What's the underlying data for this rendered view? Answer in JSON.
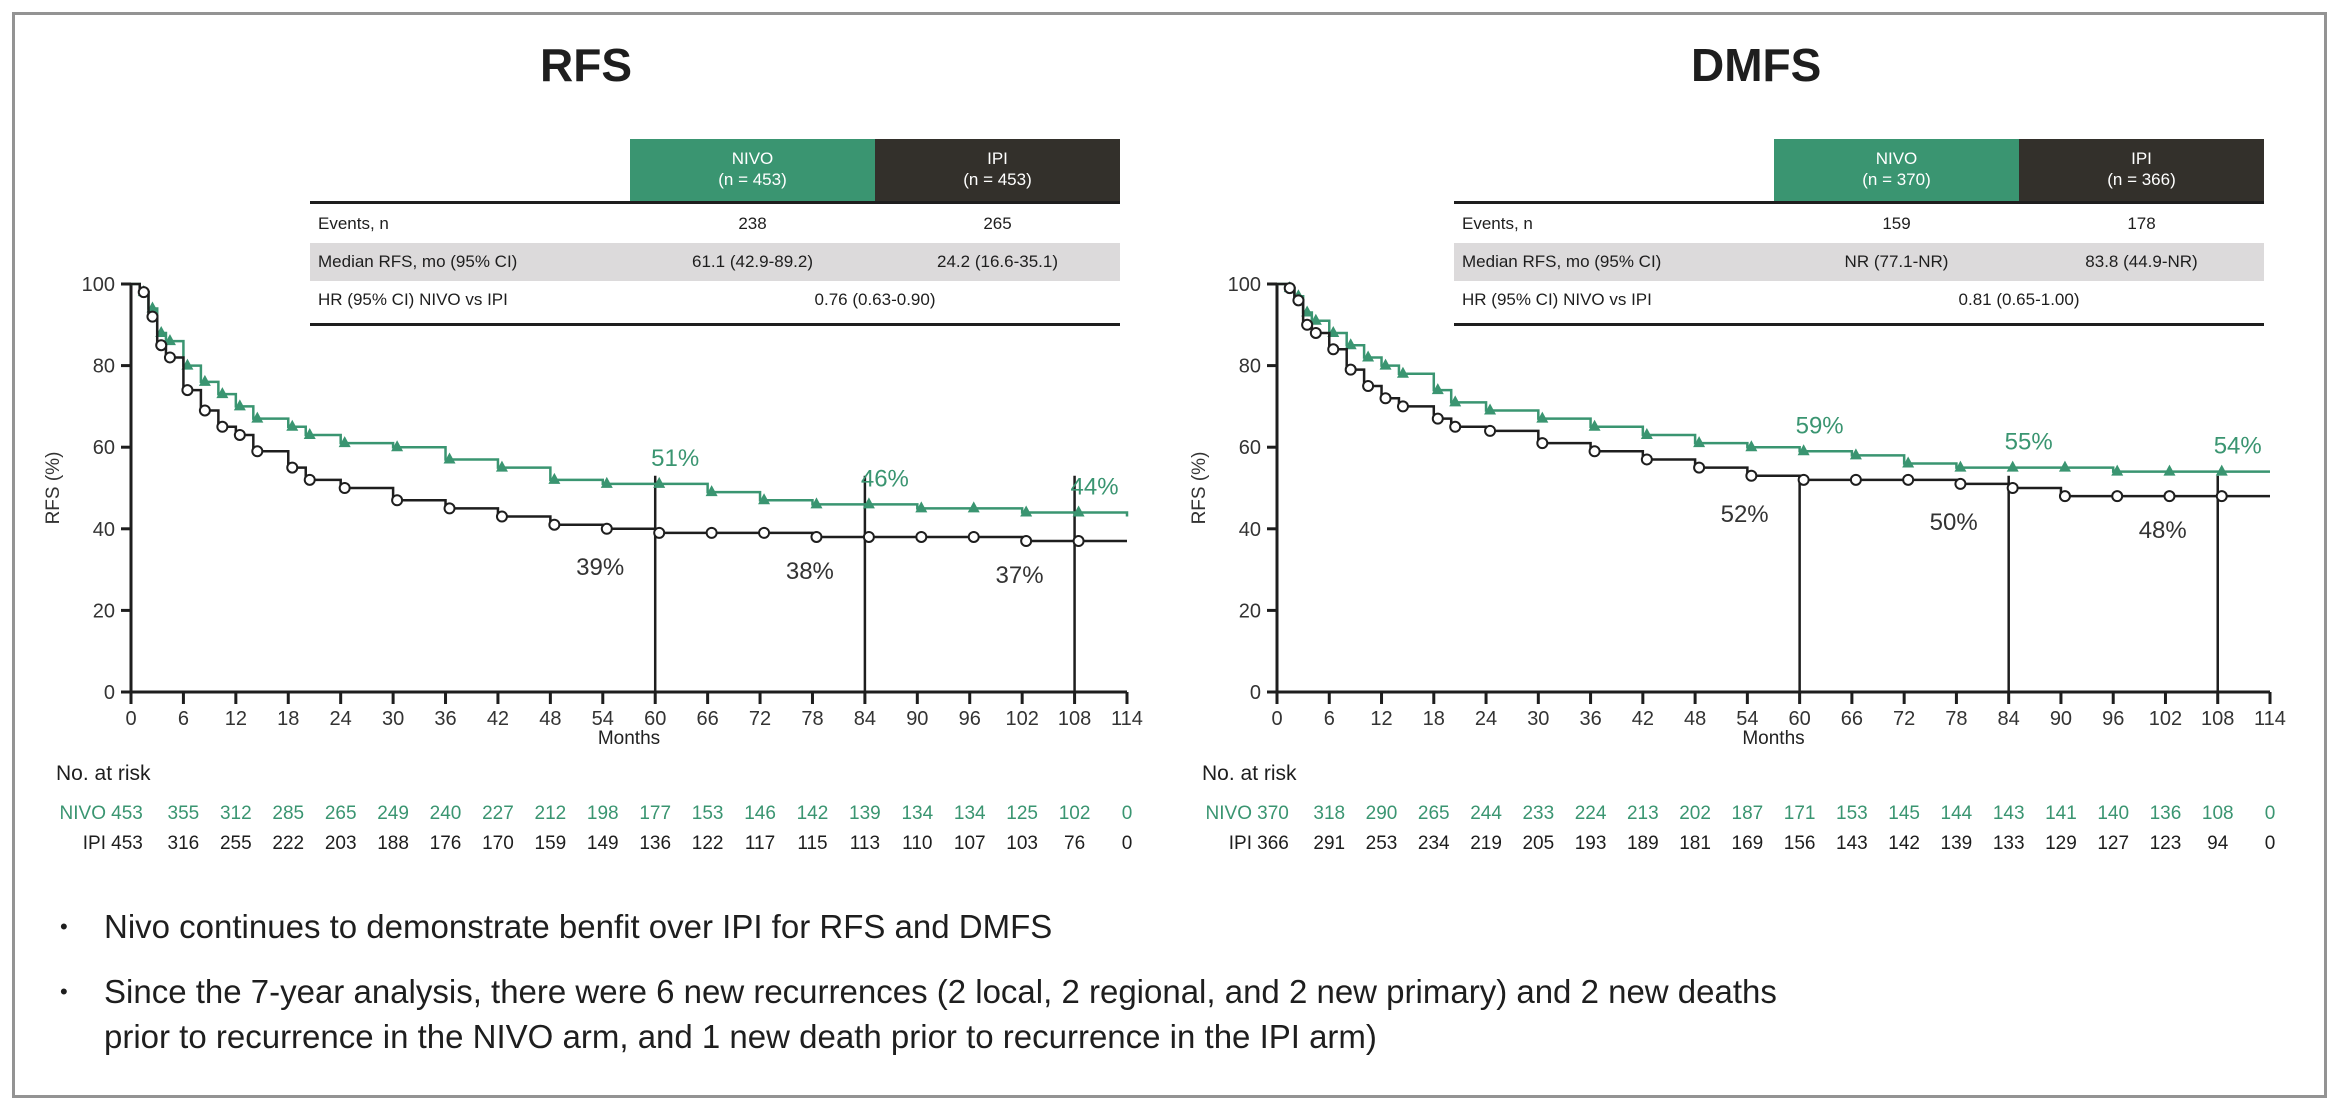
{
  "colors": {
    "nivo": "#3a9571",
    "ipi": "#1e1e1e",
    "ipi_header": "#33302b",
    "shade": "#dcdadb",
    "border": "#939393"
  },
  "risk_heading": "No. at risk",
  "bullets": [
    {
      "text": "Nivo continues to demonstrate benfit over IPI for RFS and DMFS"
    },
    {
      "text": "Since the 7-year analysis, there were 6 new recurrences (2 local, 2 regional, and 2 new primary) and 2 new deaths",
      "text2": "prior to recurrence in the NIVO arm, and 1 new death prior to recurrence in the IPI arm)"
    }
  ],
  "panels": [
    {
      "title": "RFS",
      "table": {
        "nivo_header": "NIVO",
        "nivo_n": "(n = 453)",
        "ipi_header": "IPI",
        "ipi_n": "(n = 453)",
        "rows": [
          {
            "label": "Events, n",
            "nivo": "238",
            "ipi": "265"
          },
          {
            "label": "Median RFS, mo (95% CI)",
            "nivo": "61.1 (42.9-89.2)",
            "ipi": "24.2 (16.6-35.1)"
          },
          {
            "label": "HR (95% CI) NIVO vs IPI",
            "combined": "0.76 (0.63-0.90)"
          }
        ]
      },
      "risk": {
        "nivo_label": "NIVO",
        "ipi_label": "IPI",
        "nivo": [
          "453",
          "355",
          "312",
          "285",
          "265",
          "249",
          "240",
          "227",
          "212",
          "198",
          "177",
          "153",
          "146",
          "142",
          "139",
          "134",
          "134",
          "125",
          "102",
          "0"
        ],
        "ipi": [
          "453",
          "316",
          "255",
          "222",
          "203",
          "188",
          "176",
          "170",
          "159",
          "149",
          "136",
          "122",
          "117",
          "115",
          "113",
          "110",
          "107",
          "103",
          "76",
          "0"
        ]
      }
    },
    {
      "title": "DMFS",
      "table": {
        "nivo_header": "NIVO",
        "nivo_n": "(n = 370)",
        "ipi_header": "IPI",
        "ipi_n": "(n = 366)",
        "rows": [
          {
            "label": "Events, n",
            "nivo": "159",
            "ipi": "178"
          },
          {
            "label": "Median RFS, mo (95% CI)",
            "nivo": "NR (77.1-NR)",
            "ipi": "83.8 (44.9-NR)"
          },
          {
            "label": "HR (95% CI) NIVO vs IPI",
            "combined": "0.81 (0.65-1.00)"
          }
        ]
      },
      "risk": {
        "nivo_label": "NIVO",
        "ipi_label": "IPI",
        "nivo": [
          "370",
          "318",
          "290",
          "265",
          "244",
          "233",
          "224",
          "213",
          "202",
          "187",
          "171",
          "153",
          "145",
          "144",
          "143",
          "141",
          "140",
          "136",
          "108",
          "0"
        ],
        "ipi": [
          "366",
          "291",
          "253",
          "234",
          "219",
          "205",
          "193",
          "189",
          "181",
          "169",
          "156",
          "143",
          "142",
          "139",
          "133",
          "129",
          "127",
          "123",
          "94",
          "0"
        ]
      }
    }
  ],
  "chart_data": [
    {
      "type": "line",
      "title": "RFS",
      "xlabel": "Months",
      "ylabel": "RFS (%)",
      "xlim": [
        0,
        114
      ],
      "ylim": [
        0,
        100
      ],
      "xticks": [
        0,
        6,
        12,
        18,
        24,
        30,
        36,
        42,
        48,
        54,
        60,
        66,
        72,
        78,
        84,
        90,
        96,
        102,
        108,
        114
      ],
      "yticks": [
        0,
        20,
        40,
        60,
        80,
        100
      ],
      "reference_lines_x": [
        60,
        84,
        108
      ],
      "series": [
        {
          "name": "NIVO",
          "marker": "triangle",
          "x": [
            0,
            1,
            2,
            3,
            4,
            6,
            8,
            10,
            12,
            14,
            18,
            20,
            24,
            30,
            36,
            42,
            48,
            54,
            60,
            66,
            72,
            78,
            84,
            90,
            96,
            102,
            108,
            114
          ],
          "y": [
            100,
            98,
            94,
            88,
            86,
            80,
            76,
            73,
            70,
            67,
            65,
            63,
            61,
            60,
            57,
            55,
            52,
            51,
            51,
            49,
            47,
            46,
            46,
            45,
            45,
            44,
            44,
            43
          ]
        },
        {
          "name": "IPI",
          "marker": "circle",
          "x": [
            0,
            1,
            2,
            3,
            4,
            6,
            8,
            10,
            12,
            14,
            18,
            20,
            24,
            30,
            36,
            42,
            48,
            54,
            60,
            66,
            72,
            78,
            84,
            90,
            96,
            102,
            108,
            114
          ],
          "y": [
            100,
            98,
            92,
            85,
            82,
            74,
            69,
            65,
            63,
            59,
            55,
            52,
            50,
            47,
            45,
            43,
            41,
            40,
            39,
            39,
            39,
            38,
            38,
            38,
            38,
            37,
            37,
            37
          ]
        }
      ],
      "annotations": [
        {
          "x": 60,
          "series": "NIVO",
          "text": "51%"
        },
        {
          "x": 84,
          "series": "NIVO",
          "text": "46%"
        },
        {
          "x": 108,
          "series": "NIVO",
          "text": "44%"
        },
        {
          "x": 60,
          "series": "IPI",
          "text": "39%"
        },
        {
          "x": 84,
          "series": "IPI",
          "text": "38%"
        },
        {
          "x": 108,
          "series": "IPI",
          "text": "37%"
        }
      ]
    },
    {
      "type": "line",
      "title": "DMFS",
      "xlabel": "Months",
      "ylabel": "RFS (%)",
      "xlim": [
        0,
        114
      ],
      "ylim": [
        0,
        100
      ],
      "xticks": [
        0,
        6,
        12,
        18,
        24,
        30,
        36,
        42,
        48,
        54,
        60,
        66,
        72,
        78,
        84,
        90,
        96,
        102,
        108,
        114
      ],
      "yticks": [
        0,
        20,
        40,
        60,
        80,
        100
      ],
      "reference_lines_x": [
        60,
        84,
        108
      ],
      "series": [
        {
          "name": "NIVO",
          "marker": "triangle",
          "x": [
            0,
            1,
            2,
            3,
            4,
            6,
            8,
            10,
            12,
            14,
            18,
            20,
            24,
            30,
            36,
            42,
            48,
            54,
            60,
            66,
            72,
            78,
            84,
            90,
            96,
            102,
            108,
            114
          ],
          "y": [
            100,
            99,
            97,
            93,
            91,
            88,
            85,
            82,
            80,
            78,
            74,
            71,
            69,
            67,
            65,
            63,
            61,
            60,
            59,
            58,
            56,
            55,
            55,
            55,
            54,
            54,
            54,
            54
          ]
        },
        {
          "name": "IPI",
          "marker": "circle",
          "x": [
            0,
            1,
            2,
            3,
            4,
            6,
            8,
            10,
            12,
            14,
            18,
            20,
            24,
            30,
            36,
            42,
            48,
            54,
            60,
            66,
            72,
            78,
            84,
            90,
            96,
            102,
            108,
            114
          ],
          "y": [
            100,
            99,
            96,
            90,
            88,
            84,
            79,
            75,
            72,
            70,
            67,
            65,
            64,
            61,
            59,
            57,
            55,
            53,
            52,
            52,
            52,
            51,
            50,
            48,
            48,
            48,
            48,
            48
          ]
        }
      ],
      "annotations": [
        {
          "x": 60,
          "series": "NIVO",
          "text": "59%"
        },
        {
          "x": 84,
          "series": "NIVO",
          "text": "55%"
        },
        {
          "x": 108,
          "series": "NIVO",
          "text": "54%"
        },
        {
          "x": 60,
          "series": "IPI",
          "text": "52%"
        },
        {
          "x": 84,
          "series": "IPI",
          "text": "50%"
        },
        {
          "x": 108,
          "series": "IPI",
          "text": "48%"
        }
      ]
    }
  ]
}
